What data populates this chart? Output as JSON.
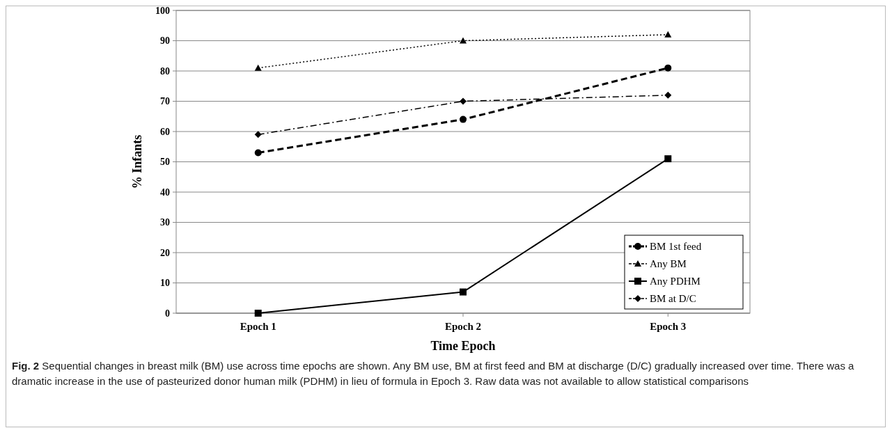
{
  "chart_data": {
    "type": "line",
    "xlabel": "Time Epoch",
    "ylabel": "% Infants",
    "categories": [
      "Epoch 1",
      "Epoch 2",
      "Epoch 3"
    ],
    "series": [
      {
        "name": "BM 1st feed",
        "color": "#000000",
        "values": [
          53,
          64,
          81
        ],
        "marker": "circle",
        "line_style": "dashed"
      },
      {
        "name": "Any BM",
        "color": "#000000",
        "values": [
          81,
          90,
          92
        ],
        "marker": "triangle",
        "line_style": "dotted"
      },
      {
        "name": "Any PDHM",
        "color": "#000000",
        "values": [
          0,
          7,
          51
        ],
        "marker": "square",
        "line_style": "solid"
      },
      {
        "name": "BM at D/C",
        "color": "#000000",
        "values": [
          59,
          70,
          72
        ],
        "marker": "diamond",
        "line_style": "dashdot"
      }
    ],
    "ylim": [
      0,
      100
    ],
    "yticks": [
      0,
      10,
      20,
      30,
      40,
      50,
      60,
      70,
      80,
      90,
      100
    ],
    "grid": "y",
    "legend": "bottom right",
    "annotations": [
      "Fig. 2 Sequential changes in breast milk (BM) use across time epochs are shown. Any BM use, BM at first feed and BM at discharge (D/C) gradually increased over time. There was a dramatic increase in the use of pasteurized donor human milk (PDHM) in lieu of formula in Epoch 3. Raw data was not available to allow statistical comparisons"
    ]
  }
}
